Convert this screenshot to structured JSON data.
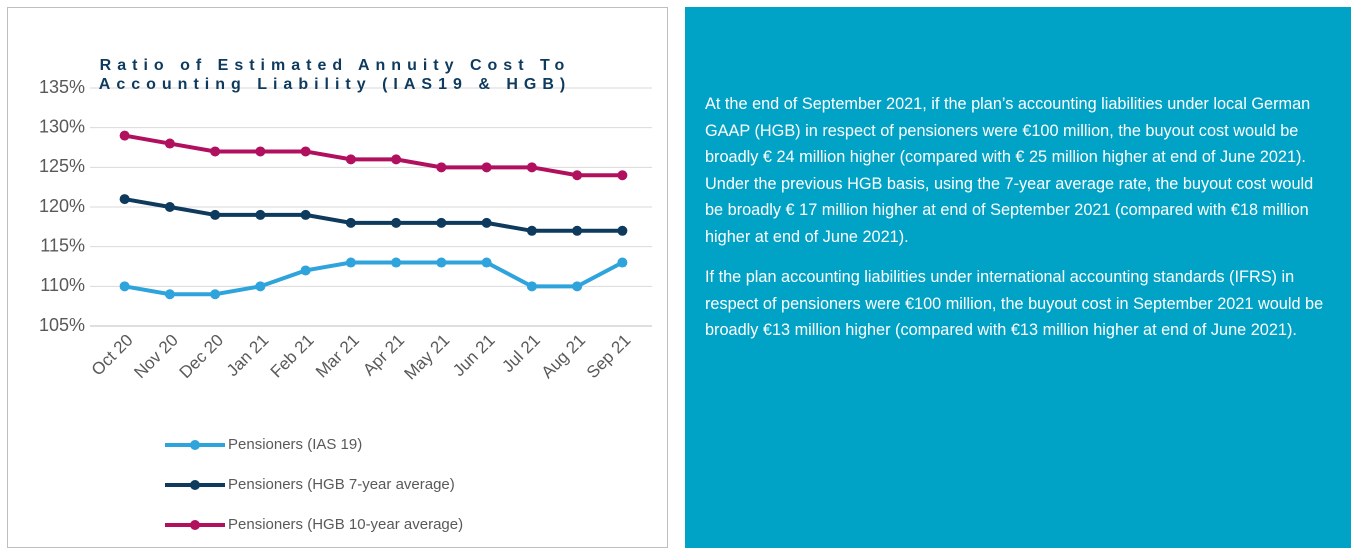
{
  "chart_data": {
    "type": "line",
    "title": "Ratio of Estimated Annuity Cost To Accounting Liability (IAS19 & HGB)",
    "categories": [
      "Oct 20",
      "Nov 20",
      "Dec 20",
      "Jan 21",
      "Feb 21",
      "Mar 21",
      "Apr 21",
      "May 21",
      "Jun 21",
      "Jul 21",
      "Aug 21",
      "Sep 21"
    ],
    "series": [
      {
        "name": "Pensioners (IAS 19)",
        "color": "#2ea3dc",
        "values": [
          110,
          109,
          109,
          110,
          112,
          113,
          113,
          113,
          113,
          110,
          110,
          113
        ]
      },
      {
        "name": "Pensioners (HGB 7-year average)",
        "color": "#0e3a5e",
        "values": [
          121,
          120,
          119,
          119,
          119,
          118,
          118,
          118,
          118,
          117,
          117,
          117
        ]
      },
      {
        "name": "Pensioners (HGB 10-year average)",
        "color": "#b0105e",
        "values": [
          129,
          128,
          127,
          127,
          127,
          126,
          126,
          125,
          125,
          125,
          124,
          124
        ]
      }
    ],
    "ylim": [
      105,
      135
    ],
    "yticks": [
      {
        "value": 105,
        "label": "105%"
      },
      {
        "value": 110,
        "label": "110%"
      },
      {
        "value": 115,
        "label": "115%"
      },
      {
        "value": 120,
        "label": "120%"
      },
      {
        "value": 125,
        "label": "125%"
      },
      {
        "value": 130,
        "label": "130%"
      },
      {
        "value": 135,
        "label": "135%"
      }
    ],
    "grid": true,
    "legend": "bottom"
  },
  "panel": {
    "paragraphs": [
      "At the end of September 2021, if the plan’s accounting liabilities under local German GAAP (HGB) in respect of pensioners were €100 million, the buyout cost would be broadly € 24 million higher (compared with € 25 million higher at end of June 2021). Under the previous HGB basis, using the 7-year average rate, the buyout cost would be broadly € 17 million higher at end of September 2021 (compared with €18 million higher at end of June 2021).",
      "If the plan accounting liabilities under international accounting standards (IFRS) in respect of pensioners were €100 million, the buyout cost in September 2021 would be broadly €13 million higher (compared with €13 million higher at end of June 2021)."
    ]
  }
}
